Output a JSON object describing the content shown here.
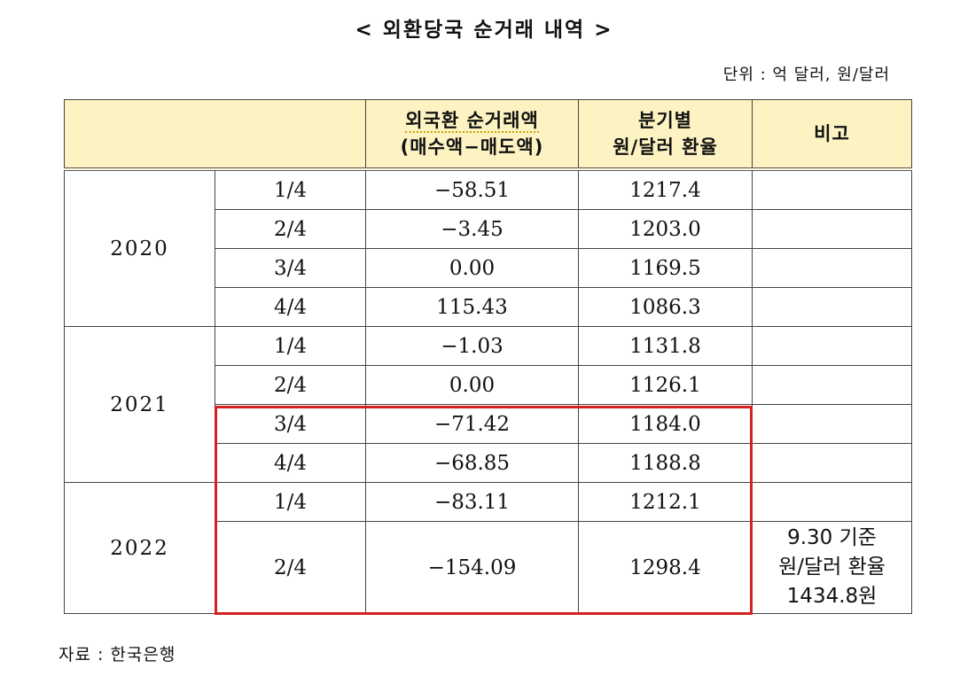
{
  "title": "< 외환당국 순거래 내역 >",
  "unit": "단위 : 억 달러, 원/달러",
  "header": {
    "net_line1": "외국환 순거래액",
    "net_line2": "(매수액−매도액)",
    "rate_line1": "분기별",
    "rate_line2": "원/달러 환율",
    "remark": "비고"
  },
  "rows": [
    {
      "year": "2020",
      "quarter": "1/4",
      "net": "−58.51",
      "rate": "1217.4"
    },
    {
      "year": "2020",
      "quarter": "2/4",
      "net": "−3.45",
      "rate": "1203.0"
    },
    {
      "year": "2020",
      "quarter": "3/4",
      "net": "0.00",
      "rate": "1169.5"
    },
    {
      "year": "2020",
      "quarter": "4/4",
      "net": "115.43",
      "rate": "1086.3"
    },
    {
      "year": "2021",
      "quarter": "1/4",
      "net": "−1.03",
      "rate": "1131.8"
    },
    {
      "year": "2021",
      "quarter": "2/4",
      "net": "0.00",
      "rate": "1126.1"
    },
    {
      "year": "2021",
      "quarter": "3/4",
      "net": "−71.42",
      "rate": "1184.0"
    },
    {
      "year": "2021",
      "quarter": "4/4",
      "net": "−68.85",
      "rate": "1188.8"
    },
    {
      "year": "2022",
      "quarter": "1/4",
      "net": "−83.11",
      "rate": "1212.1"
    },
    {
      "year": "2022",
      "quarter": "2/4",
      "net": "−154.09",
      "rate": "1298.4"
    }
  ],
  "years": [
    "2020",
    "2021",
    "2022"
  ],
  "remark_2022_q2": [
    "9.30 기준",
    "원/달러 환율",
    "1434.8원"
  ],
  "source": "자료 : 한국은행",
  "colors": {
    "header_bg": "#fdf3c2",
    "highlight_border": "#d42222"
  }
}
